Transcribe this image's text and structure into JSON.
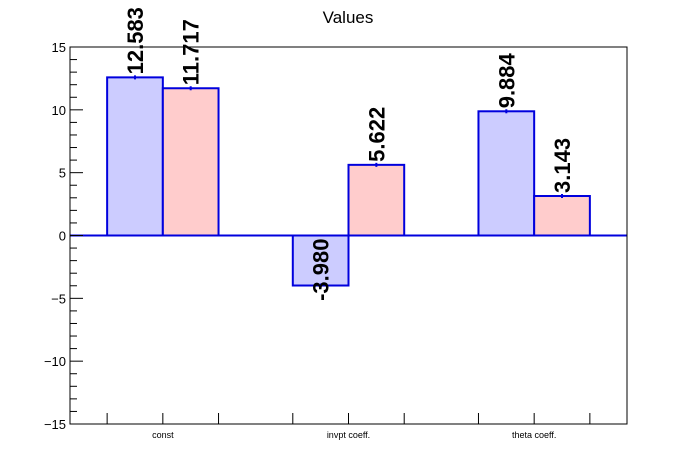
{
  "chart_data": {
    "type": "bar",
    "title": "Values",
    "xlabel": "",
    "ylabel": "",
    "categories": [
      "const",
      "invpt coeff.",
      "theta coeff."
    ],
    "ylim": [
      -15,
      15
    ],
    "yticks": [
      -15,
      -10,
      -5,
      0,
      5,
      10,
      15
    ],
    "yticks_labels": [
      "−15",
      "−10",
      "−5",
      "0",
      "5",
      "10",
      "15"
    ],
    "grid": false,
    "legend": "none",
    "series": [
      {
        "color_fill": "#ccccff",
        "color_edge": "#0000dd",
        "values": [
          12.583,
          -3.98,
          9.884
        ],
        "labels": [
          "12.583",
          "-3.980",
          "9.884"
        ]
      },
      {
        "color_fill": "#ffcccc",
        "color_edge": "#0000dd",
        "values": [
          11.717,
          5.622,
          3.143
        ],
        "labels": [
          "11.717",
          "5.622",
          "3.143"
        ]
      }
    ]
  }
}
